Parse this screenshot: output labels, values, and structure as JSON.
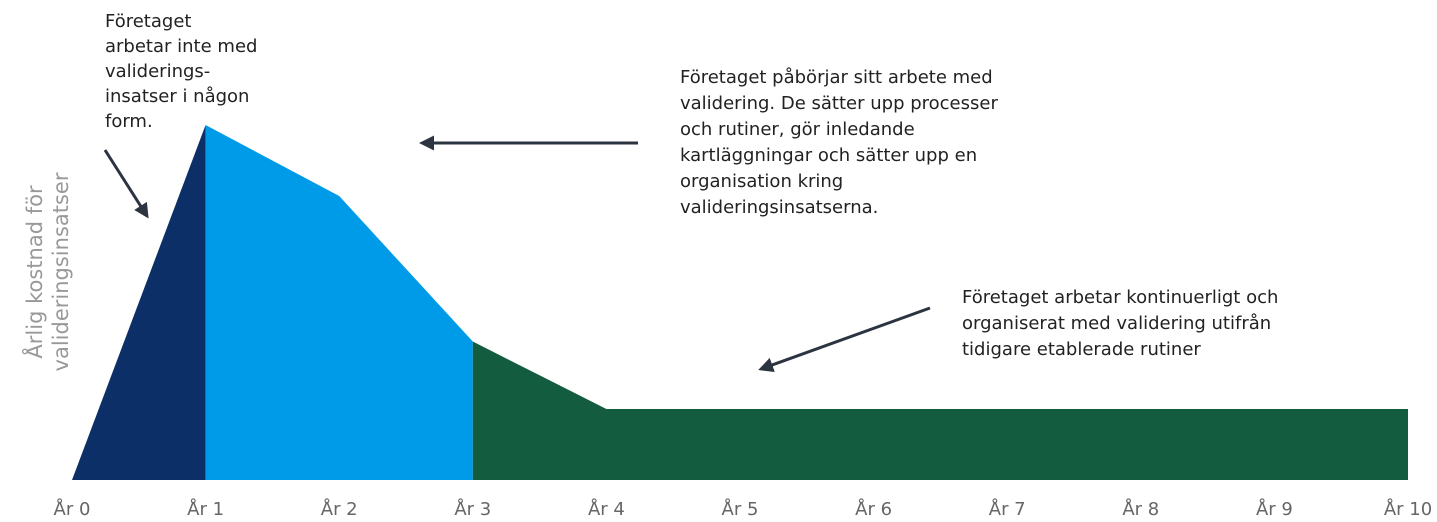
{
  "chart_data": {
    "type": "area",
    "y_label": [
      "Årlig kostnad för",
      "valideringsinsatser"
    ],
    "categories": [
      "År 0",
      "År 1",
      "År 2",
      "År 3",
      "År 4",
      "År 5",
      "År 6",
      "År 7",
      "År 8",
      "År 9",
      "År 10"
    ],
    "series": [
      {
        "color": "#0b2f66",
        "values": [
          0,
          100,
          null,
          null,
          null,
          null,
          null,
          null,
          null,
          null,
          null
        ]
      },
      {
        "color": "#009be8",
        "values": [
          null,
          100,
          80,
          39,
          null,
          null,
          null,
          null,
          null,
          null,
          null
        ]
      },
      {
        "color": "#135c40",
        "values": [
          null,
          null,
          null,
          39,
          20,
          20,
          20,
          20,
          20,
          20,
          20
        ]
      }
    ],
    "ylim": [
      0,
      100
    ],
    "annotations": [
      {
        "lines": [
          "Företaget",
          "arbetar inte med",
          "validerings-",
          "insatser i någon",
          "form."
        ]
      },
      {
        "lines": [
          "Företaget påbörjar sitt arbete med",
          "validering. De sätter upp processer",
          "och rutiner, gör inledande",
          "kartläggningar och sätter upp en",
          "organisation kring",
          "valideringsinsatserna."
        ]
      },
      {
        "lines": [
          "Företaget arbetar kontinuerligt och",
          "organiserat med validering utifrån",
          "tidigare etablerade rutiner"
        ]
      }
    ]
  }
}
